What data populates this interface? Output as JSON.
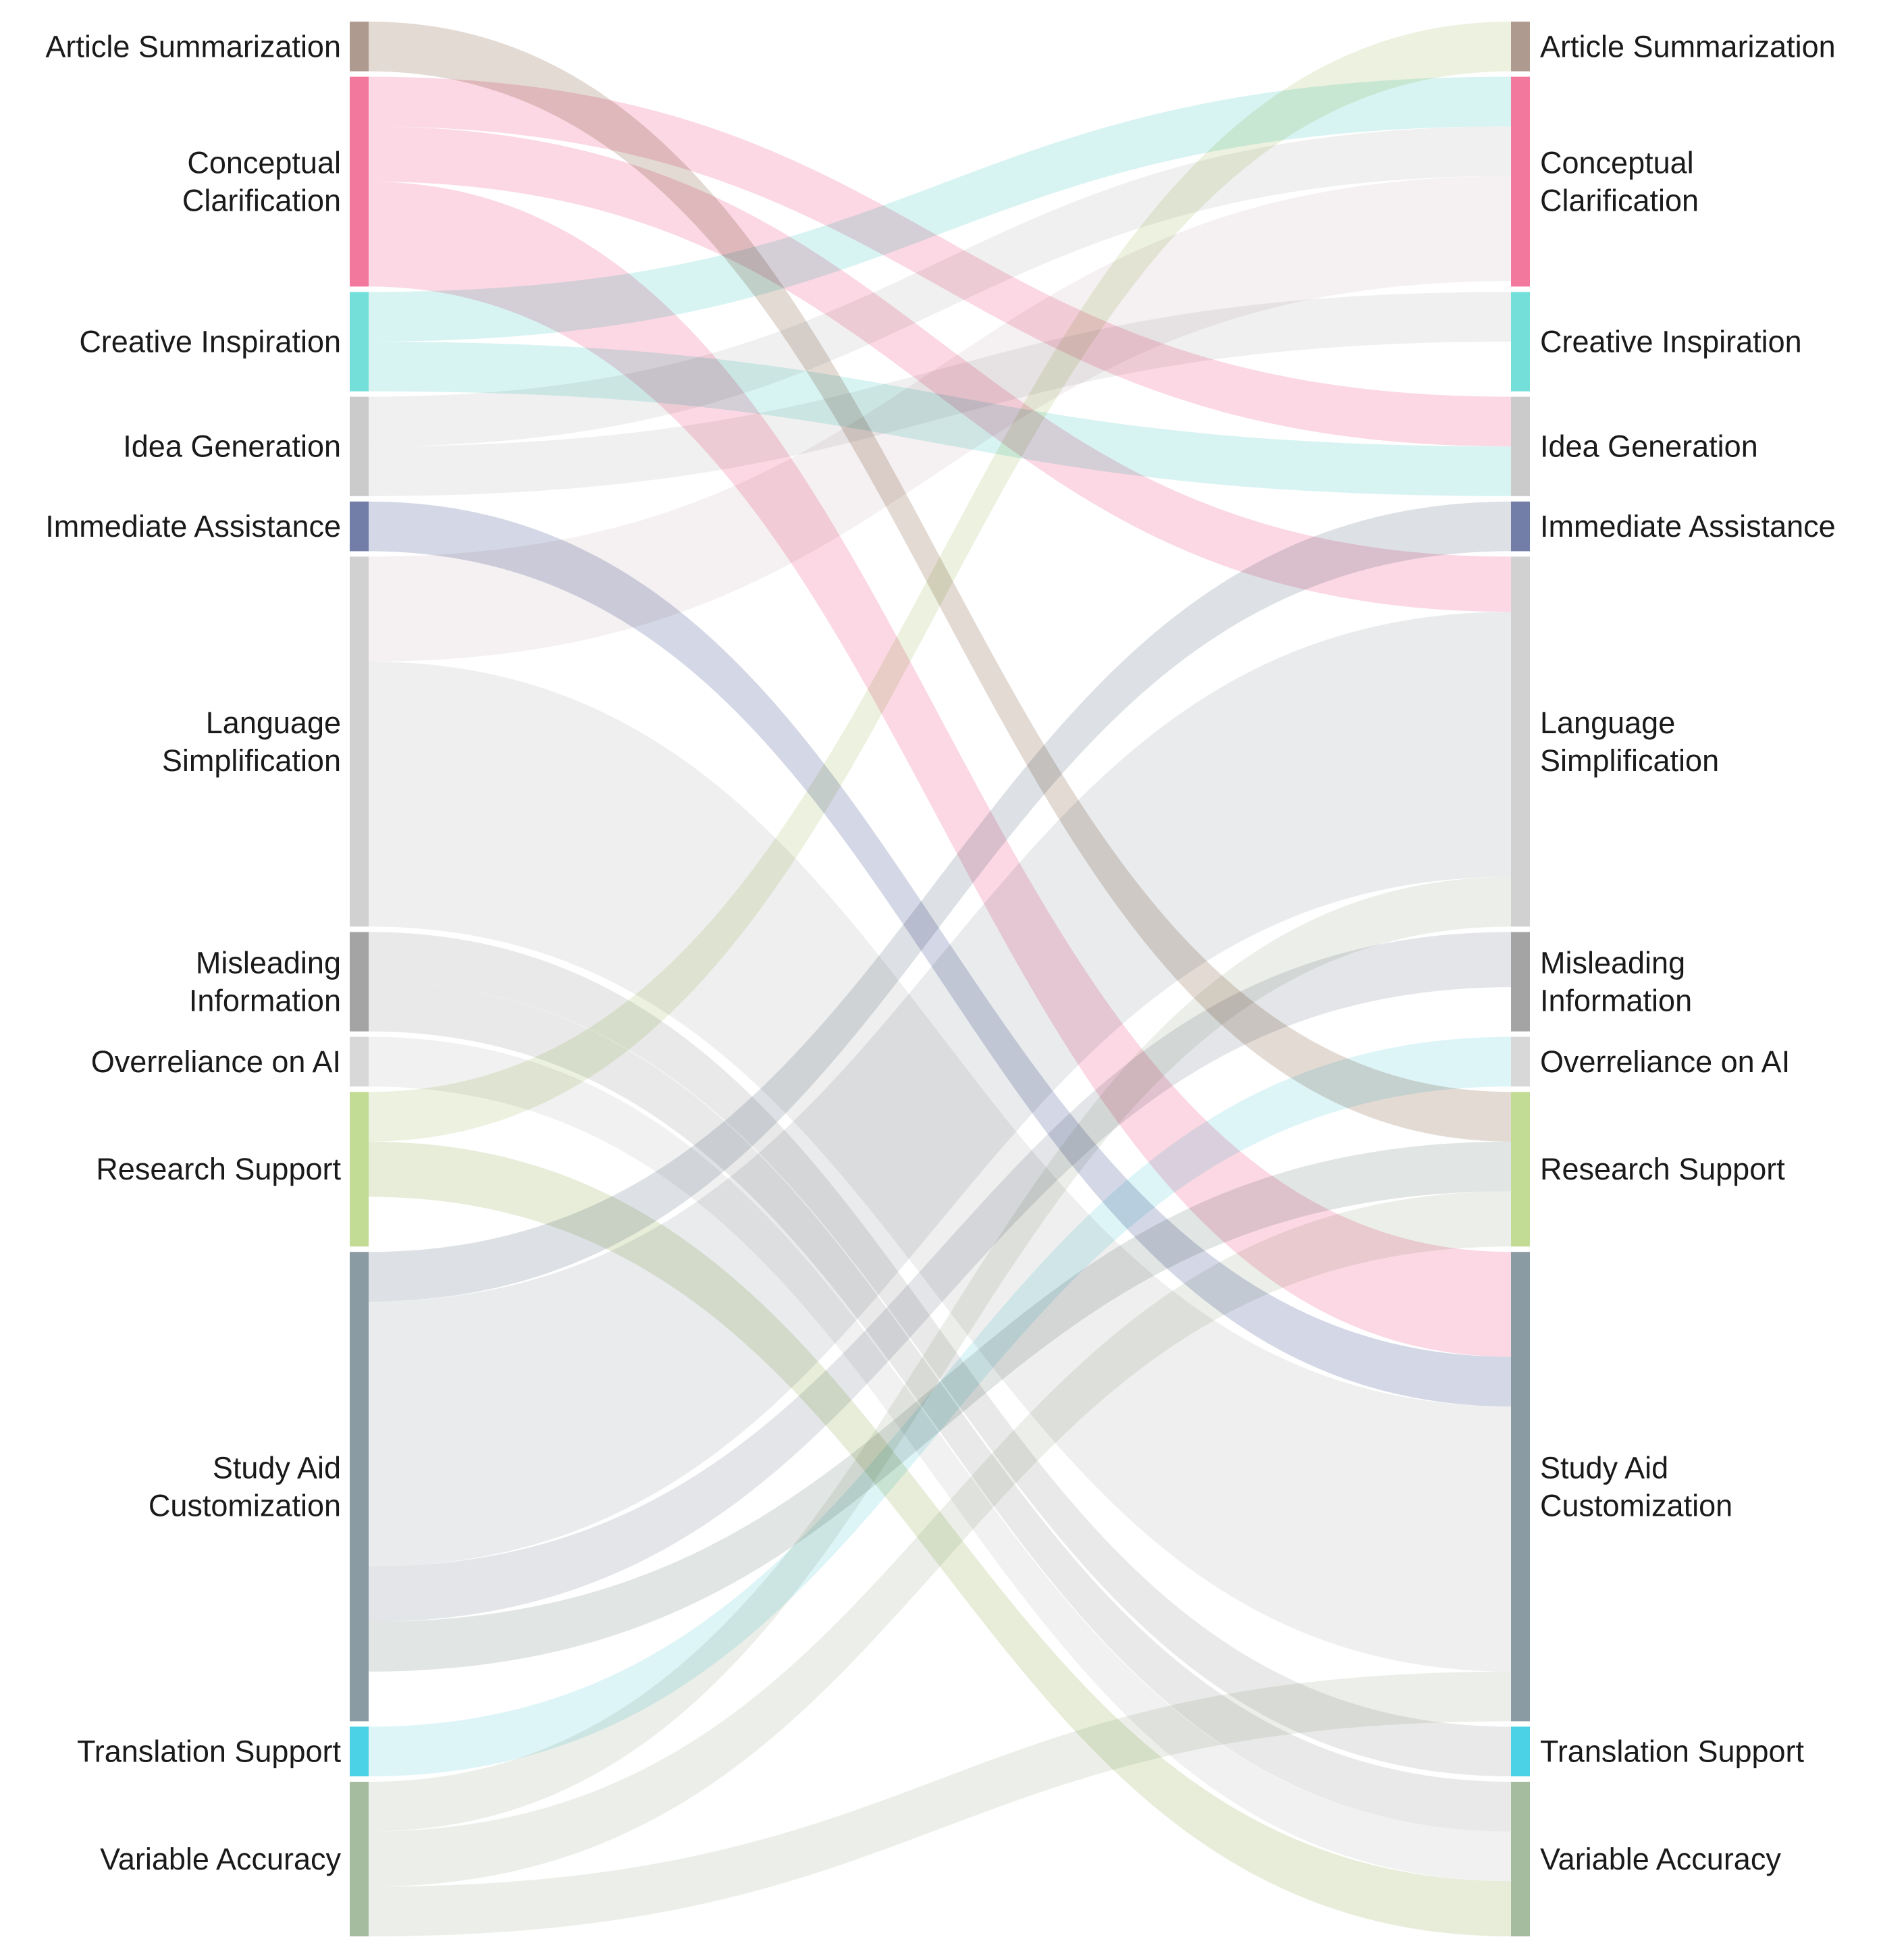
{
  "nodes": [
    {
      "id": "article-summarization",
      "lines": [
        "Article Summarization"
      ],
      "color": "#ae9a8e"
    },
    {
      "id": "conceptual-clarification",
      "lines": [
        "Conceptual",
        "Clarification"
      ],
      "color": "#f2799d"
    },
    {
      "id": "creative-inspiration",
      "lines": [
        "Creative Inspiration"
      ],
      "color": "#74dfd9"
    },
    {
      "id": "idea-generation",
      "lines": [
        "Idea Generation"
      ],
      "color": "#cbcbcb"
    },
    {
      "id": "immediate-assistance",
      "lines": [
        "Immediate Assistance"
      ],
      "color": "#727da8"
    },
    {
      "id": "language-simplification",
      "lines": [
        "Language",
        "Simplification"
      ],
      "color": "#d1d1d1"
    },
    {
      "id": "misleading-information",
      "lines": [
        "Misleading",
        "Information"
      ],
      "color": "#a4a4a4"
    },
    {
      "id": "overreliance-on-ai",
      "lines": [
        "Overreliance on AI"
      ],
      "color": "#d8d8d8"
    },
    {
      "id": "research-support",
      "lines": [
        "Research Support"
      ],
      "color": "#c3dc95"
    },
    {
      "id": "study-aid-customization",
      "lines": [
        "Study Aid",
        "Customization"
      ],
      "color": "#8a9ba4"
    },
    {
      "id": "translation-support",
      "lines": [
        "Translation Support"
      ],
      "color": "#4cd2e6"
    },
    {
      "id": "variable-accuracy",
      "lines": [
        "Variable Accuracy"
      ],
      "color": "#a6bc9e"
    }
  ],
  "flows": [
    {
      "source": 0,
      "target": 8,
      "value": 9,
      "color": "#c2ae9f"
    },
    {
      "source": 1,
      "target": 3,
      "value": 9,
      "color": "#f7a9c0"
    },
    {
      "source": 1,
      "target": 5,
      "value": 10,
      "color": "#f7a9c0"
    },
    {
      "source": 1,
      "target": 9,
      "value": 19,
      "color": "#f7a9c0"
    },
    {
      "source": 2,
      "target": 1,
      "value": 9,
      "color": "#a8e6e3"
    },
    {
      "source": 2,
      "target": 3,
      "value": 9,
      "color": "#a8e6e3"
    },
    {
      "source": 3,
      "target": 1,
      "value": 9,
      "color": "#dedede"
    },
    {
      "source": 3,
      "target": 2,
      "value": 9,
      "color": "#dedede"
    },
    {
      "source": 4,
      "target": 9,
      "value": 9,
      "color": "#9ea6c8"
    },
    {
      "source": 5,
      "target": 1,
      "value": 19,
      "color": "#e9dedf"
    },
    {
      "source": 5,
      "target": 9,
      "value": 48,
      "color": "#dcdcdc"
    },
    {
      "source": 6,
      "target": 10,
      "value": 9,
      "color": "#cfcfcf"
    },
    {
      "source": 6,
      "target": 11,
      "value": 9,
      "color": "#cfcfcf"
    },
    {
      "source": 7,
      "target": 11,
      "value": 9,
      "color": "#e1e1e1"
    },
    {
      "source": 8,
      "target": 0,
      "value": 9,
      "color": "#d5e3b8"
    },
    {
      "source": 8,
      "target": 11,
      "value": 10,
      "color": "#c9d8aa"
    },
    {
      "source": 9,
      "target": 4,
      "value": 9,
      "color": "#b3bcc6"
    },
    {
      "source": 9,
      "target": 5,
      "value": 48,
      "color": "#cfd3d7"
    },
    {
      "source": 9,
      "target": 6,
      "value": 10,
      "color": "#c0c6cc"
    },
    {
      "source": 9,
      "target": 8,
      "value": 9,
      "color": "#bcc6c3"
    },
    {
      "source": 10,
      "target": 7,
      "value": 9,
      "color": "#b5e8f0"
    },
    {
      "source": 11,
      "target": 5,
      "value": 9,
      "color": "#d4dccf"
    },
    {
      "source": 11,
      "target": 8,
      "value": 10,
      "color": "#d4dccf"
    },
    {
      "source": 11,
      "target": 9,
      "value": 9,
      "color": "#d4dccf"
    }
  ]
}
